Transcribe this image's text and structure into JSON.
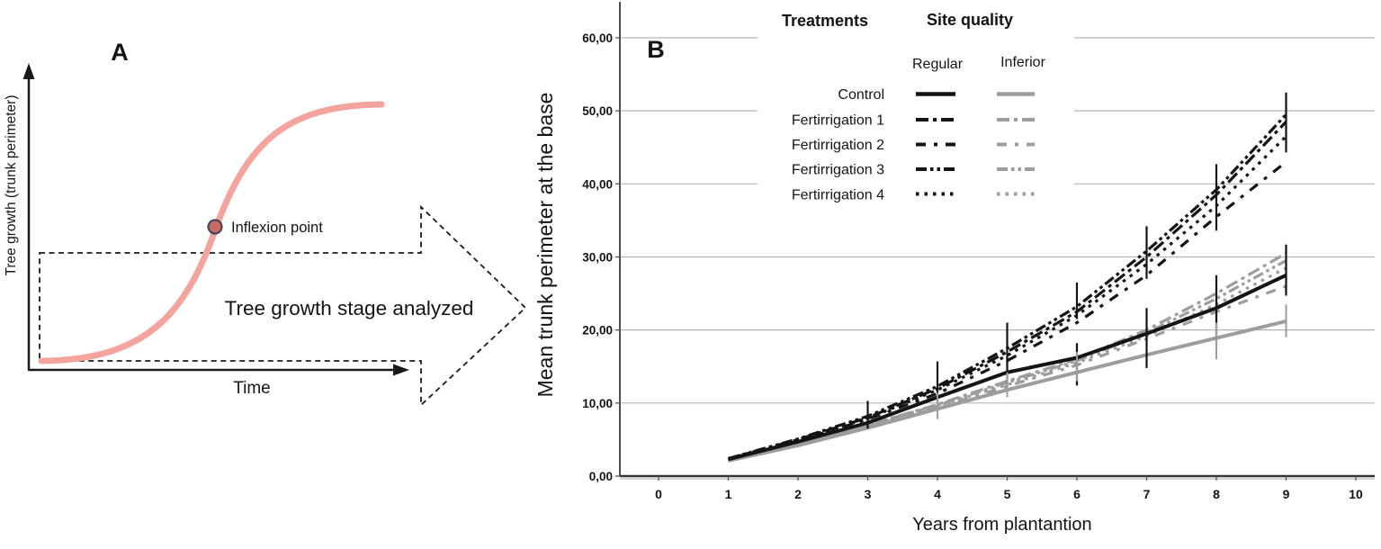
{
  "panel_a": {
    "label": "A",
    "y_axis_label": "Tree growth (trunk perimeter)",
    "x_axis_label": "Time",
    "inflexion_point_label": "Inflexion point",
    "stage_arrow_label": "Tree growth stage analyzed",
    "curve_color": "#f4a49d",
    "inflexion_fill": "#c96b63",
    "inflexion_stroke": "#474760"
  },
  "panel_b": {
    "label": "B"
  },
  "chart_data": {
    "type": "line",
    "title": "",
    "xlabel": "Years from plantantion",
    "ylabel": "Mean trunk perimeter at the base",
    "x_ticks": [
      0,
      1,
      2,
      3,
      4,
      5,
      6,
      7,
      8,
      9,
      10
    ],
    "y_ticks": [
      0,
      10,
      20,
      30,
      40,
      50,
      60
    ],
    "y_tick_labels": [
      "0,00",
      "10,00",
      "20,00",
      "30,00",
      "40,00",
      "50,00",
      "60,00"
    ],
    "xlim": [
      -0.55,
      10.3
    ],
    "ylim": [
      0,
      64.8
    ],
    "grid": "horizontal",
    "legend_position": "top-inside",
    "years": [
      1,
      2,
      3,
      4,
      5,
      6,
      7,
      8,
      9
    ],
    "legend": {
      "treatments_header": "Treatments",
      "site_quality_header": "Site quality",
      "site_levels": [
        "Regular",
        "Inferior"
      ],
      "treatment_labels": [
        "Control",
        "Fertirrigation 1",
        "Fertirrigation 2",
        "Fertirrigation 3",
        "Fertirrigation 4"
      ]
    },
    "colors": {
      "regular": "#141414",
      "inferior": "#9d9d9d"
    },
    "dash_patterns": {
      "Control": "",
      "Fertirrigation 1": "14 5 4 5",
      "Fertirrigation 2": "11 9 4 9",
      "Fertirrigation 3": "12 4 3.5 4 3.5 4",
      "Fertirrigation 4": "3.5 6"
    },
    "series": [
      {
        "treatment": "Control",
        "site": "Regular",
        "values": [
          2.3,
          4.7,
          7.3,
          10.8,
          14.2,
          16.2,
          19.5,
          23.0,
          27.5
        ]
      },
      {
        "treatment": "Fertirrigation 1",
        "site": "Regular",
        "values": [
          2.4,
          5.0,
          8.0,
          12.0,
          17.0,
          22.5,
          30.0,
          38.5,
          48.5
        ]
      },
      {
        "treatment": "Fertirrigation 2",
        "site": "Regular",
        "values": [
          2.3,
          4.8,
          7.8,
          11.3,
          15.8,
          21.0,
          27.5,
          35.5,
          43.0
        ]
      },
      {
        "treatment": "Fertirrigation 3",
        "site": "Regular",
        "values": [
          2.4,
          5.1,
          8.2,
          12.3,
          17.5,
          23.2,
          30.8,
          39.2,
          49.5
        ]
      },
      {
        "treatment": "Fertirrigation 4",
        "site": "Regular",
        "values": [
          2.3,
          4.9,
          7.9,
          11.8,
          16.5,
          22.0,
          29.0,
          37.0,
          46.5
        ]
      },
      {
        "treatment": "Control",
        "site": "Inferior",
        "values": [
          2.1,
          4.2,
          6.6,
          9.2,
          11.8,
          14.2,
          16.6,
          18.9,
          21.2
        ]
      },
      {
        "treatment": "Fertirrigation 1",
        "site": "Inferior",
        "values": [
          2.2,
          4.5,
          7.0,
          9.8,
          13.0,
          16.0,
          20.0,
          25.0,
          30.5
        ]
      },
      {
        "treatment": "Fertirrigation 2",
        "site": "Inferior",
        "values": [
          2.1,
          4.3,
          6.8,
          9.4,
          12.3,
          15.2,
          18.8,
          22.5,
          26.0
        ]
      },
      {
        "treatment": "Fertirrigation 3",
        "site": "Inferior",
        "values": [
          2.2,
          4.5,
          7.0,
          9.7,
          12.8,
          15.8,
          19.6,
          24.3,
          29.5
        ]
      },
      {
        "treatment": "Fertirrigation 4",
        "site": "Inferior",
        "values": [
          2.1,
          4.4,
          6.9,
          9.6,
          12.5,
          15.5,
          19.2,
          23.5,
          28.5
        ]
      }
    ],
    "error_bars": [
      {
        "x": 3,
        "lo": 6.5,
        "hi": 10.3,
        "tone": "dark"
      },
      {
        "x": 4,
        "lo": 9.9,
        "hi": 15.7,
        "tone": "dark"
      },
      {
        "x": 4,
        "lo": 7.8,
        "hi": 11.4,
        "tone": "gray"
      },
      {
        "x": 5,
        "lo": 15.5,
        "hi": 21.0,
        "tone": "dark"
      },
      {
        "x": 5,
        "lo": 12.2,
        "hi": 16.3,
        "tone": "dark"
      },
      {
        "x": 5,
        "lo": 10.8,
        "hi": 14.2,
        "tone": "gray"
      },
      {
        "x": 6,
        "lo": 21.5,
        "hi": 26.5,
        "tone": "dark"
      },
      {
        "x": 6,
        "lo": 12.4,
        "hi": 18.2,
        "tone": "dark"
      },
      {
        "x": 6,
        "lo": 13.0,
        "hi": 17.0,
        "tone": "gray"
      },
      {
        "x": 7,
        "lo": 27.0,
        "hi": 34.2,
        "tone": "dark"
      },
      {
        "x": 7,
        "lo": 14.8,
        "hi": 23.0,
        "tone": "dark"
      },
      {
        "x": 8,
        "lo": 33.6,
        "hi": 42.7,
        "tone": "dark"
      },
      {
        "x": 8,
        "lo": 18.5,
        "hi": 27.5,
        "tone": "dark"
      },
      {
        "x": 8,
        "lo": 16.0,
        "hi": 21.0,
        "tone": "gray"
      },
      {
        "x": 9,
        "lo": 44.3,
        "hi": 52.5,
        "tone": "dark"
      },
      {
        "x": 9,
        "lo": 24.7,
        "hi": 31.7,
        "tone": "dark"
      },
      {
        "x": 9,
        "lo": 19.0,
        "hi": 23.5,
        "tone": "gray"
      }
    ]
  }
}
